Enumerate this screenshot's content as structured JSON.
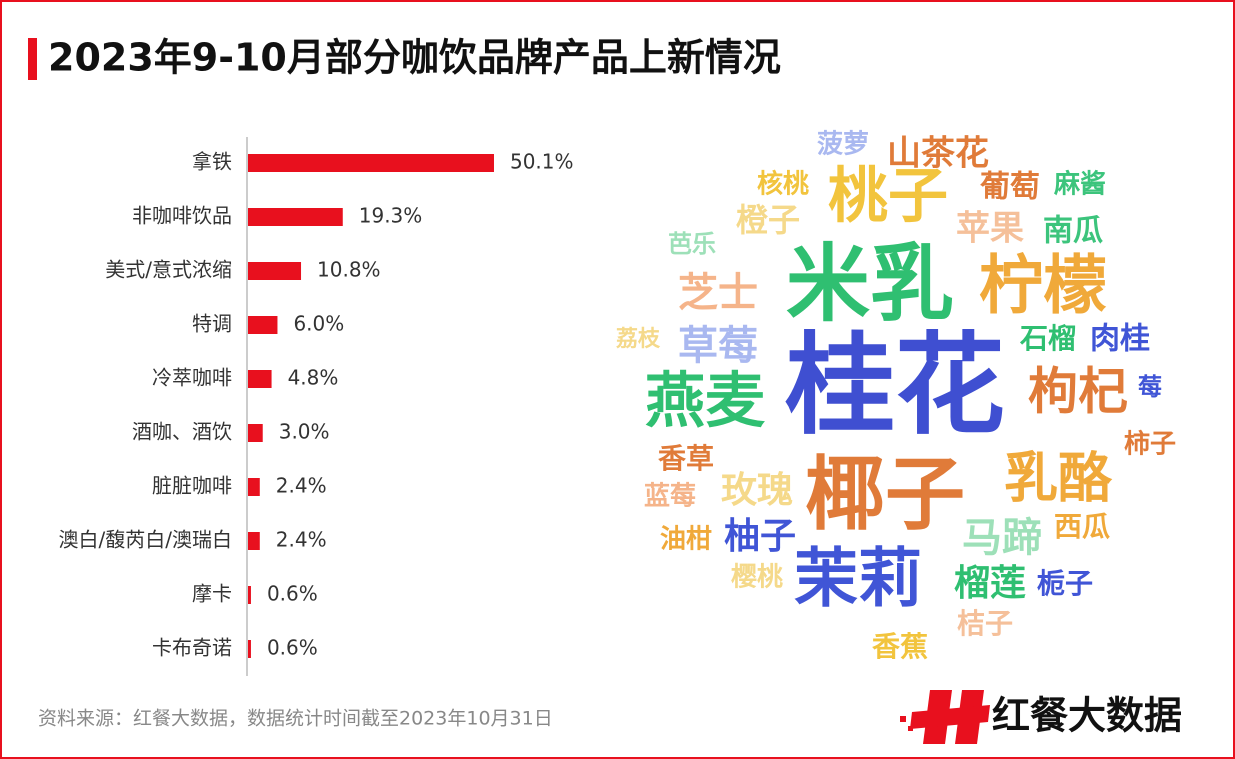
{
  "title": "2023年9-10月部分咖饮品牌产品上新情况",
  "source": "资料来源：红餐大数据，数据统计时间截至2023年10月31日",
  "logo": "红餐大数据",
  "chart_data": [
    {
      "type": "bar",
      "orientation": "horizontal",
      "color": "#e8101e",
      "categories": [
        "拿铁",
        "非咖啡饮品",
        "美式/意式浓缩",
        "特调",
        "冷萃咖啡",
        "酒咖、酒饮",
        "脏脏咖啡",
        "澳白/馥芮白/澳瑞白",
        "摩卡",
        "卡布奇诺"
      ],
      "values": [
        50.1,
        19.3,
        10.8,
        6.0,
        4.8,
        3.0,
        2.4,
        2.4,
        0.6,
        0.6
      ],
      "value_labels": [
        "50.1%",
        "19.3%",
        "10.8%",
        "6.0%",
        "4.8%",
        "3.0%",
        "2.4%",
        "2.4%",
        "0.6%",
        "0.6%"
      ]
    },
    {
      "type": "wordcloud",
      "words": [
        {
          "text": "菠萝",
          "color": "#a9b8f0"
        },
        {
          "text": "山茶花",
          "color": "#e07b39"
        },
        {
          "text": "核桃",
          "color": "#f2c43d"
        },
        {
          "text": "桃子",
          "color": "#f2c43d"
        },
        {
          "text": "葡萄",
          "color": "#e07b39"
        },
        {
          "text": "麻酱",
          "color": "#3cc47c"
        },
        {
          "text": "橙子",
          "color": "#f5d98a"
        },
        {
          "text": "苹果",
          "color": "#f5c09a"
        },
        {
          "text": "南瓜",
          "color": "#3cc47c"
        },
        {
          "text": "芭乐",
          "color": "#9de0b8"
        },
        {
          "text": "米乳",
          "color": "#2fbf71"
        },
        {
          "text": "柠檬",
          "color": "#f0a93a"
        },
        {
          "text": "芝士",
          "color": "#f5b48a"
        },
        {
          "text": "荔枝",
          "color": "#f5d98a"
        },
        {
          "text": "草莓",
          "color": "#a9b8f0"
        },
        {
          "text": "石榴",
          "color": "#2fbf71"
        },
        {
          "text": "肉桂",
          "color": "#4055d6"
        },
        {
          "text": "桂花",
          "color": "#3f4fd1"
        },
        {
          "text": "燕麦",
          "color": "#2fbf71"
        },
        {
          "text": "枸杞",
          "color": "#e07b39"
        },
        {
          "text": "莓",
          "color": "#4055d6"
        },
        {
          "text": "柿子",
          "color": "#e07b39"
        },
        {
          "text": "香草",
          "color": "#e07b39"
        },
        {
          "text": "乳酪",
          "color": "#f0a93a"
        },
        {
          "text": "椰子",
          "color": "#e07b39"
        },
        {
          "text": "玫瑰",
          "color": "#f5d98a"
        },
        {
          "text": "蓝莓",
          "color": "#f5b48a"
        },
        {
          "text": "马蹄",
          "color": "#9de0b8"
        },
        {
          "text": "西瓜",
          "color": "#f0a93a"
        },
        {
          "text": "油柑",
          "color": "#f0a93a"
        },
        {
          "text": "柚子",
          "color": "#4055d6"
        },
        {
          "text": "茉莉",
          "color": "#4055d6"
        },
        {
          "text": "樱桃",
          "color": "#f5d98a"
        },
        {
          "text": "榴莲",
          "color": "#2fbf71"
        },
        {
          "text": "栀子",
          "color": "#4055d6"
        },
        {
          "text": "桔子",
          "color": "#f5c09a"
        },
        {
          "text": "香蕉",
          "color": "#f2c43d"
        }
      ]
    }
  ]
}
